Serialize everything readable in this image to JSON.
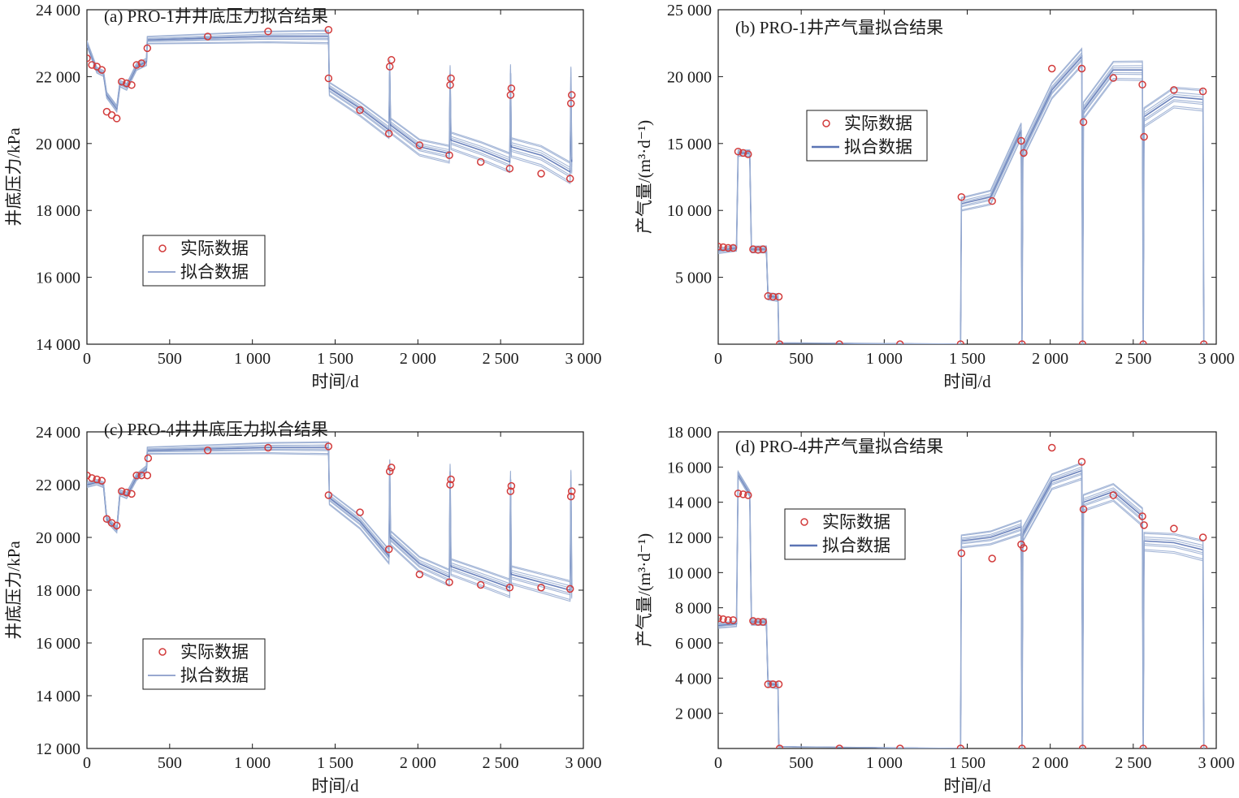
{
  "colors": {
    "fit": "#5b74b4",
    "fit_light": "#9aaed3",
    "actual": "#d23b3b",
    "axis": "#1a1a1a"
  },
  "chart_data": [
    {
      "type": "line",
      "title": "(a) PRO-1井井底压力拟合结果",
      "xlabel": "时间/d",
      "ylabel": "井底压力/kPa",
      "xlim": [
        0,
        3000
      ],
      "ylim": [
        14000,
        24000
      ],
      "xticks": [
        0,
        500,
        1000,
        1500,
        2000,
        2500,
        3000
      ],
      "xtick_labels": [
        "0",
        "500",
        "1 000",
        "1 500",
        "2 000",
        "2 500",
        "3 000"
      ],
      "yticks": [
        14000,
        16000,
        18000,
        20000,
        22000,
        24000
      ],
      "ytick_labels": [
        "14 000",
        "16 000",
        "18 000",
        "20 000",
        "22 000",
        "24 000"
      ],
      "legend": {
        "position": "lower-left",
        "entries": [
          "实际数据",
          "拟合数据"
        ]
      },
      "series": [
        {
          "name": "实际数据",
          "kind": "scatter",
          "x": [
            0,
            30,
            60,
            90,
            120,
            150,
            180,
            210,
            240,
            270,
            300,
            330,
            365,
            730,
            1095,
            1460,
            1460,
            1650,
            1825,
            1830,
            1840,
            2010,
            2190,
            2195,
            2200,
            2380,
            2555,
            2560,
            2565,
            2745,
            2920,
            2925,
            2930
          ],
          "y": [
            22550,
            22350,
            22300,
            22200,
            20950,
            20850,
            20750,
            21850,
            21800,
            21750,
            22350,
            22400,
            22850,
            23200,
            23350,
            23400,
            21950,
            21000,
            20300,
            22300,
            22500,
            19950,
            19650,
            21750,
            21950,
            19450,
            19250,
            21450,
            21650,
            19100,
            18950,
            21200,
            21450
          ]
        },
        {
          "name": "拟合数据",
          "kind": "line",
          "x": [
            0,
            60,
            100,
            120,
            180,
            200,
            240,
            300,
            360,
            365,
            730,
            1095,
            1460,
            1465,
            1650,
            1825,
            1830,
            1835,
            2010,
            2190,
            2195,
            2200,
            2380,
            2555,
            2560,
            2565,
            2745,
            2920,
            2925,
            2930
          ],
          "y": [
            23000,
            22200,
            22100,
            21450,
            21050,
            21800,
            21700,
            22300,
            22450,
            23100,
            23150,
            23200,
            23200,
            21650,
            21050,
            20400,
            22300,
            20550,
            19900,
            19700,
            22100,
            20100,
            19800,
            19450,
            22100,
            19900,
            19650,
            19150,
            22000,
            19450
          ]
        }
      ]
    },
    {
      "type": "line",
      "title": "(b) PRO-1井产气量拟合结果",
      "xlabel": "时间/d",
      "ylabel": "产气量/(m³·d⁻¹)",
      "xlim": [
        0,
        3000
      ],
      "ylim": [
        0,
        25000
      ],
      "xticks": [
        0,
        500,
        1000,
        1500,
        2000,
        2500,
        3000
      ],
      "xtick_labels": [
        "0",
        "500",
        "1 000",
        "1 500",
        "2 000",
        "2 500",
        "3 000"
      ],
      "yticks": [
        5000,
        10000,
        15000,
        20000,
        25000
      ],
      "ytick_labels": [
        "5 000",
        "10 000",
        "15 000",
        "20 000",
        "25 000"
      ],
      "legend": {
        "position": "upper-center",
        "entries": [
          "实际数据",
          "拟合数据"
        ]
      },
      "series": [
        {
          "name": "实际数据",
          "kind": "scatter",
          "x": [
            0,
            30,
            60,
            90,
            120,
            150,
            180,
            210,
            240,
            270,
            300,
            330,
            365,
            370,
            730,
            1095,
            1460,
            1465,
            1650,
            1825,
            1830,
            1840,
            2010,
            2190,
            2195,
            2200,
            2380,
            2555,
            2560,
            2565,
            2745,
            2920,
            2925
          ],
          "y": [
            7300,
            7250,
            7200,
            7200,
            14400,
            14300,
            14200,
            7100,
            7050,
            7100,
            3600,
            3550,
            3550,
            0,
            0,
            0,
            0,
            11000,
            10700,
            15200,
            0,
            14300,
            20600,
            20600,
            0,
            16600,
            19900,
            19400,
            0,
            15500,
            19000,
            18900,
            0
          ]
        },
        {
          "name": "拟合数据",
          "kind": "line",
          "x": [
            0,
            110,
            120,
            190,
            200,
            290,
            300,
            360,
            365,
            1460,
            1465,
            1640,
            1825,
            1830,
            1835,
            2010,
            2190,
            2195,
            2200,
            2380,
            2555,
            2560,
            2565,
            2745,
            2920,
            2925
          ],
          "y": [
            7000,
            7200,
            14300,
            14300,
            7100,
            7100,
            3600,
            3500,
            100,
            0,
            10500,
            11000,
            16000,
            0,
            14500,
            19000,
            21500,
            0,
            17500,
            20500,
            20500,
            0,
            17000,
            18500,
            18300,
            0
          ]
        }
      ]
    },
    {
      "type": "line",
      "title": "(c) PRO-4井井底压力拟合结果",
      "xlabel": "时间/d",
      "ylabel": "井底压力/kPa",
      "xlim": [
        0,
        3000
      ],
      "ylim": [
        12000,
        24000
      ],
      "xticks": [
        0,
        500,
        1000,
        1500,
        2000,
        2500,
        3000
      ],
      "xtick_labels": [
        "0",
        "500",
        "1 000",
        "1 500",
        "2 000",
        "2 500",
        "3 000"
      ],
      "yticks": [
        12000,
        14000,
        16000,
        18000,
        20000,
        22000,
        24000
      ],
      "ytick_labels": [
        "12 000",
        "14 000",
        "16 000",
        "18 000",
        "20 000",
        "22 000",
        "24 000"
      ],
      "legend": {
        "position": "lower-left",
        "entries": [
          "实际数据",
          "拟合数据"
        ]
      },
      "series": [
        {
          "name": "实际数据",
          "kind": "scatter",
          "x": [
            0,
            30,
            60,
            90,
            120,
            150,
            180,
            210,
            240,
            270,
            300,
            330,
            365,
            370,
            730,
            1095,
            1460,
            1460,
            1650,
            1825,
            1830,
            1840,
            2010,
            2190,
            2195,
            2200,
            2380,
            2555,
            2560,
            2565,
            2745,
            2920,
            2925,
            2930
          ],
          "y": [
            22350,
            22250,
            22200,
            22150,
            20700,
            20550,
            20450,
            21750,
            21700,
            21650,
            22350,
            22350,
            22350,
            23000,
            23300,
            23400,
            23450,
            21600,
            20950,
            19550,
            22500,
            22650,
            18600,
            18300,
            22000,
            22200,
            18200,
            18100,
            21750,
            21950,
            18100,
            18050,
            21550,
            21750
          ]
        },
        {
          "name": "拟合数据",
          "kind": "line",
          "x": [
            0,
            60,
            100,
            120,
            180,
            200,
            240,
            300,
            360,
            365,
            730,
            1095,
            1460,
            1465,
            1650,
            1825,
            1830,
            1835,
            2010,
            2190,
            2195,
            2200,
            2380,
            2555,
            2560,
            2565,
            2745,
            2920,
            2925,
            2930
          ],
          "y": [
            22000,
            22100,
            22000,
            20700,
            20300,
            21700,
            21600,
            22300,
            22600,
            23300,
            23350,
            23400,
            23400,
            21500,
            20600,
            19300,
            22700,
            20000,
            19000,
            18500,
            22500,
            18900,
            18500,
            18100,
            22200,
            18600,
            18300,
            18000,
            22200,
            18100
          ]
        }
      ]
    },
    {
      "type": "line",
      "title": "(d) PRO-4井产气量拟合结果",
      "xlabel": "时间/d",
      "ylabel": "产气量/(m³·d⁻¹)",
      "xlim": [
        0,
        3000
      ],
      "ylim": [
        0,
        18000
      ],
      "xticks": [
        0,
        500,
        1000,
        1500,
        2000,
        2500,
        3000
      ],
      "xtick_labels": [
        "0",
        "500",
        "1 000",
        "1 500",
        "2 000",
        "2 500",
        "3 000"
      ],
      "yticks": [
        2000,
        4000,
        6000,
        8000,
        10000,
        12000,
        14000,
        16000,
        18000
      ],
      "ytick_labels": [
        "2 000",
        "4 000",
        "6 000",
        "8 000",
        "10 000",
        "12 000",
        "14 000",
        "16 000",
        "18 000"
      ],
      "legend": {
        "position": "upper-center",
        "entries": [
          "实际数据",
          "拟合数据"
        ]
      },
      "series": [
        {
          "name": "实际数据",
          "kind": "scatter",
          "x": [
            0,
            30,
            60,
            90,
            120,
            150,
            180,
            210,
            240,
            270,
            300,
            330,
            365,
            370,
            730,
            1095,
            1460,
            1465,
            1650,
            1825,
            1830,
            1840,
            2010,
            2190,
            2195,
            2200,
            2380,
            2555,
            2560,
            2565,
            2745,
            2920,
            2925
          ],
          "y": [
            7400,
            7350,
            7300,
            7300,
            14500,
            14450,
            14400,
            7250,
            7200,
            7200,
            3650,
            3650,
            3650,
            0,
            0,
            0,
            0,
            11100,
            10800,
            11600,
            0,
            11400,
            17100,
            16300,
            0,
            13600,
            14400,
            13200,
            0,
            12700,
            12500,
            12000,
            0
          ]
        },
        {
          "name": "拟合数据",
          "kind": "line",
          "x": [
            0,
            110,
            120,
            190,
            200,
            290,
            300,
            360,
            365,
            1460,
            1465,
            1640,
            1825,
            1830,
            1835,
            2010,
            2190,
            2195,
            2200,
            2380,
            2555,
            2560,
            2565,
            2745,
            2920,
            2925
          ],
          "y": [
            7000,
            7100,
            15600,
            14500,
            7200,
            7200,
            3700,
            3600,
            100,
            0,
            11800,
            12000,
            12600,
            0,
            12200,
            15200,
            15800,
            0,
            14000,
            14600,
            13200,
            0,
            11800,
            11700,
            11300,
            0
          ]
        }
      ]
    }
  ]
}
